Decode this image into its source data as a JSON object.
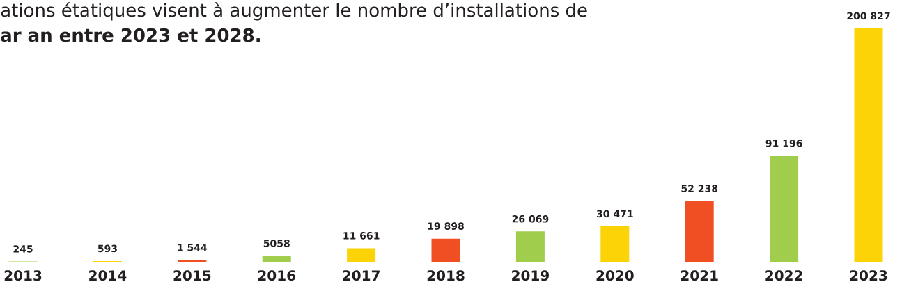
{
  "chart_data": {
    "type": "bar",
    "title": "ations étatiques visent à augmenter le nombre d’installations de",
    "subtitle": "ar an entre 2023 et 2028.",
    "categories": [
      "2013",
      "2014",
      "2015",
      "2016",
      "2017",
      "2018",
      "2019",
      "2020",
      "2021",
      "2022",
      "2023"
    ],
    "values": [
      245,
      593,
      1544,
      5058,
      11661,
      19898,
      26069,
      30471,
      52238,
      91196,
      200827
    ],
    "colors": [
      "#a1cd4c",
      "#fcd307",
      "#f04e23",
      "#a1cd4c",
      "#fcd307",
      "#f04e23",
      "#a1cd4c",
      "#fcd307",
      "#f04e23",
      "#a1cd4c",
      "#fcd307"
    ],
    "value_labels": [
      "245",
      "593",
      "1 544",
      "5058",
      "11 661",
      "19 898",
      "26 069",
      "30 471",
      "52 238",
      "91 196",
      "200 827"
    ]
  }
}
